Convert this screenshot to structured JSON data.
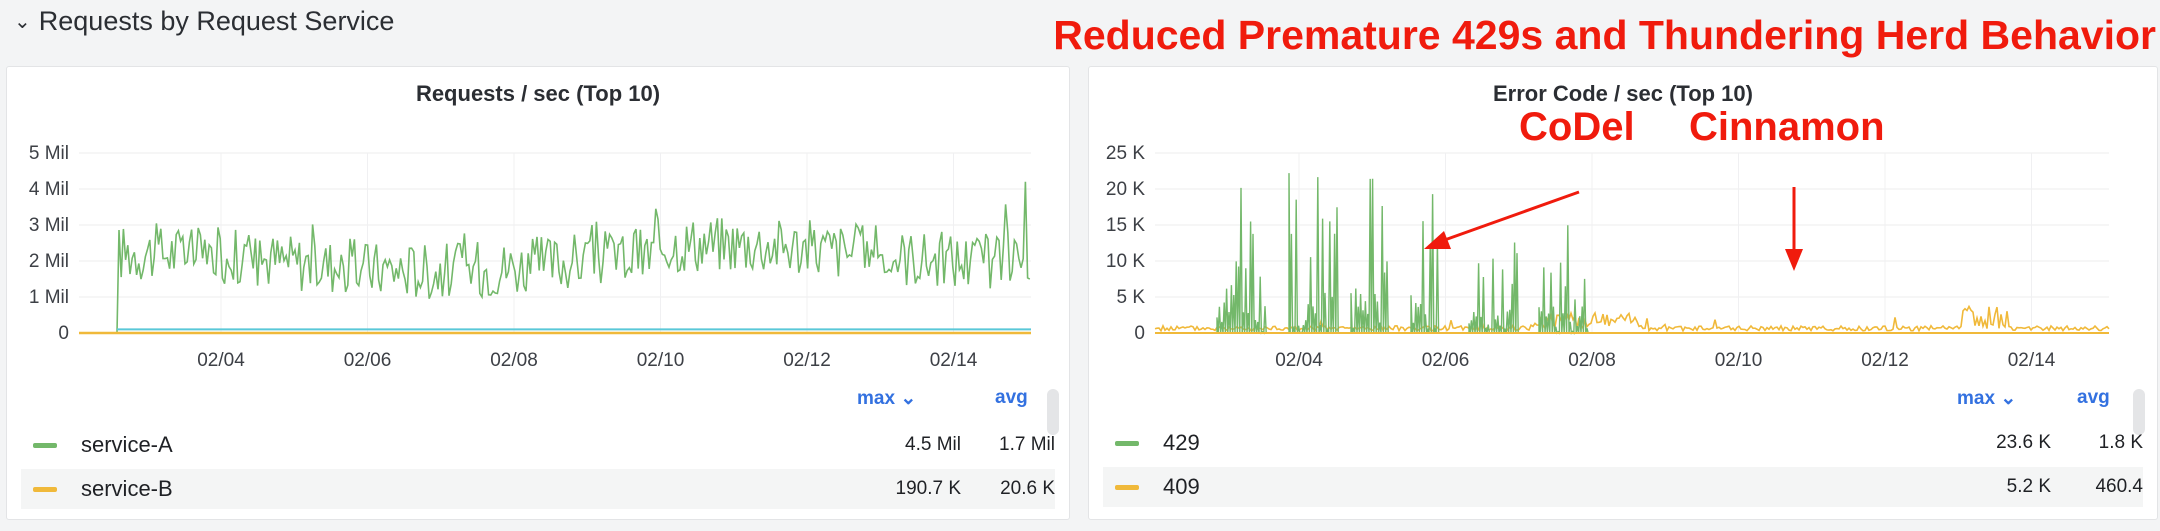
{
  "row": {
    "title": "Requests by Request Service",
    "collapse_icon": "chevron-down-icon"
  },
  "headline": "Reduced Premature 429s and Thundering Herd Behavior",
  "colors": {
    "green": "#73b86a",
    "yellow": "#f0b93a",
    "cyan": "#5ac8d8",
    "annotation": "#f01b0d",
    "link": "#3371e0"
  },
  "panels": [
    {
      "title": "Requests / sec (Top 10)",
      "y_ticks": [
        "5 Mil",
        "4 Mil",
        "3 Mil",
        "2 Mil",
        "1 Mil",
        "0"
      ],
      "x_ticks": [
        "02/04",
        "02/06",
        "02/08",
        "02/10",
        "02/12",
        "02/14"
      ],
      "legend": {
        "max_label": "max",
        "avg_label": "avg",
        "rows": [
          {
            "name": "service-A",
            "max": "4.5 Mil",
            "avg": "1.7 Mil"
          },
          {
            "name": "service-B",
            "max": "190.7 K",
            "avg": "20.6 K"
          }
        ]
      }
    },
    {
      "title": "Error Code / sec (Top 10)",
      "y_ticks": [
        "25 K",
        "20 K",
        "15 K",
        "10 K",
        "5 K",
        "0"
      ],
      "x_ticks": [
        "02/04",
        "02/06",
        "02/08",
        "02/10",
        "02/12",
        "02/14"
      ],
      "annotations": [
        "CoDel",
        "Cinnamon"
      ],
      "legend": {
        "max_label": "max",
        "avg_label": "avg",
        "rows": [
          {
            "name": "429",
            "max": "23.6 K",
            "avg": "1.8 K"
          },
          {
            "name": "409",
            "max": "5.2 K",
            "avg": "460.4"
          }
        ]
      }
    }
  ],
  "chart_data": [
    {
      "type": "line",
      "title": "Requests / sec (Top 10)",
      "x_range": [
        "02/02",
        "02/15"
      ],
      "ylim": [
        0,
        5000000
      ],
      "series": [
        {
          "name": "service-A",
          "approx_level": 2000000,
          "max": 4500000,
          "avg": 1700000
        },
        {
          "name": "service-B",
          "approx_level": 100000,
          "max": 190700,
          "avg": 20600
        }
      ]
    },
    {
      "type": "line",
      "title": "Error Code / sec (Top 10)",
      "x_range": [
        "02/02",
        "02/15"
      ],
      "ylim": [
        0,
        25000
      ],
      "series": [
        {
          "name": "429",
          "max": 23600,
          "avg": 1800,
          "active_until": "02/07"
        },
        {
          "name": "409",
          "max": 5200,
          "avg": 460.4
        }
      ]
    }
  ]
}
